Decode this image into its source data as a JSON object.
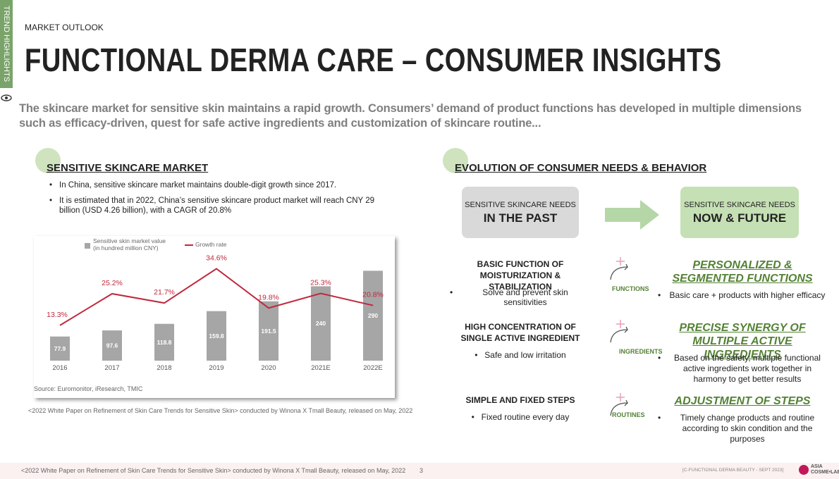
{
  "sidebar": {
    "label": "TREND HIGHLIGHTS"
  },
  "header": {
    "kicker": "MARKET OUTLOOK",
    "title": "FUNCTIONAL DERMA CARE – CONSUMER INSIGHTS",
    "intro": "The skincare market for sensitive skin maintains a rapid growth. Consumers’ demand of product functions has developed in multiple dimensions such as efficacy-driven, quest for safe active ingredients and customization of skincare routine..."
  },
  "market": {
    "heading": "SENSITIVE SKINCARE MARKET",
    "bullets": [
      "In China, sensitive skincare market maintains double-digit growth since 2017.",
      "It is estimated that in 2022, China’s sensitive skincare product market will reach CNY 29 billion (USD 4.26 billion), with a CAGR of 20.8%"
    ],
    "source": "Source: Euromonitor, iResearch, TMIC",
    "note": "<2022 White Paper on Refinement of Skin Care Trends for Sensitive Skin> conducted by Winona X Tmall Beauty, released on May, 2022"
  },
  "chart_data": {
    "type": "bar",
    "categories": [
      "2016",
      "2017",
      "2018",
      "2019",
      "2020",
      "2021E",
      "2022E"
    ],
    "series": [
      {
        "name": "Sensitive skin market value (in hundred million CNY)",
        "type": "bar",
        "color": "#a6a6a6",
        "values": [
          77.9,
          97.6,
          118.8,
          159.8,
          191.5,
          240,
          290
        ]
      },
      {
        "name": "Growth rate",
        "type": "line",
        "axis": "y2",
        "color": "#c0283c",
        "values": [
          13.3,
          25.2,
          21.7,
          34.6,
          19.8,
          25.3,
          20.8
        ],
        "value_labels": [
          "13.3%",
          "25.2%",
          "21.7%",
          "34.6%",
          "19.8%",
          "25.3%",
          "20.8%"
        ]
      }
    ],
    "ylim": [
      0,
      300
    ],
    "y2lim": [
      0,
      35
    ]
  },
  "evolution": {
    "heading": "EVOLUTION OF CONSUMER NEEDS & BEHAVIOR",
    "past": {
      "caption": "SENSITIVE SKINCARE NEEDS",
      "label": "IN THE PAST"
    },
    "future": {
      "caption": "SENSITIVE SKINCARE NEEDS",
      "label": "NOW & FUTURE"
    },
    "rows": [
      {
        "past": "BASIC FUNCTION OF MOISTURIZATION & STABILIZATION",
        "past_bullet": "Solve and prevent skin sensitivities",
        "tag": "FUNCTIONS",
        "future": "PERSONALIZED & SEGMENTED FUNCTIONS",
        "future_bullet": "Basic care + products with higher efficacy"
      },
      {
        "past": "HIGH CONCENTRATION OF SINGLE ACTIVE INGREDIENT",
        "past_bullet": "Safe and low irritation",
        "tag": "INGREDIENTS",
        "future": "PRECISE SYNERGY OF MULTIPLE ACTIVE INGREDIENTS",
        "future_bullet": "Based on the safety, multiple functional active ingredients work together in harmony to get better results"
      },
      {
        "past": "SIMPLE AND FIXED STEPS",
        "past_bullet": "Fixed routine every day",
        "tag": "ROUTINES",
        "future": "ADJUSTMENT OF STEPS",
        "future_bullet": "Timely change products and routine according to skin condition and the purposes"
      }
    ]
  },
  "footer": {
    "note": "<2022 White Paper on Refinement of Skin Care Trends for Sensitive Skin> conducted by Winona X Tmall Beauty, released on May, 2022",
    "page": 3,
    "ref": "[C-FUNCTIONAL  DERMA BEAUTY - SEPT 2023]",
    "logo": "ASIA COSME•LAB"
  }
}
